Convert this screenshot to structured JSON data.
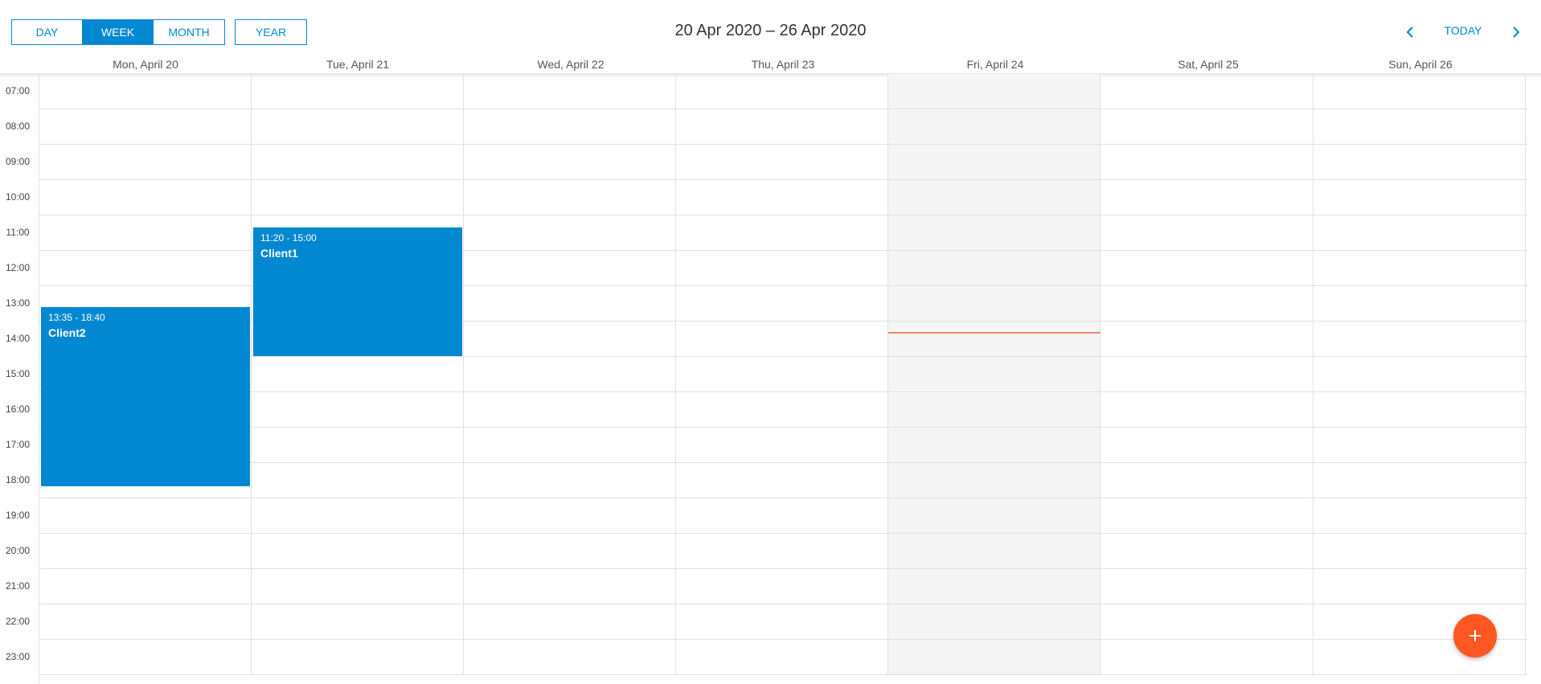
{
  "toolbar": {
    "views": [
      "DAY",
      "WEEK",
      "MONTH"
    ],
    "year_label": "YEAR",
    "active_view": "WEEK",
    "period_title": "20 Apr 2020 – 26 Apr 2020",
    "today_label": "TODAY",
    "prev_icon": "chevron-left-icon",
    "next_icon": "chevron-right-icon"
  },
  "days": [
    "Mon, April 20",
    "Tue, April 21",
    "Wed, April 22",
    "Thu, April 23",
    "Fri, April 24",
    "Sat, April 25",
    "Sun, April 26"
  ],
  "today_index": 4,
  "times": [
    "07:00",
    "08:00",
    "09:00",
    "10:00",
    "11:00",
    "12:00",
    "13:00",
    "14:00",
    "15:00",
    "16:00",
    "17:00",
    "18:00",
    "19:00",
    "20:00",
    "21:00",
    "22:00",
    "23:00"
  ],
  "appointments": [
    {
      "day_index": 0,
      "time": "13:35 - 18:40",
      "title": "Client2"
    },
    {
      "day_index": 1,
      "time": "11:20 - 15:00",
      "title": "Client1"
    }
  ],
  "current_time": "14:11",
  "colors": {
    "accent": "#0288d1",
    "fab": "#ff5722",
    "now_line": "#f4866a",
    "today_bg": "#f5f5f5"
  },
  "fab": {
    "icon": "plus-icon"
  }
}
